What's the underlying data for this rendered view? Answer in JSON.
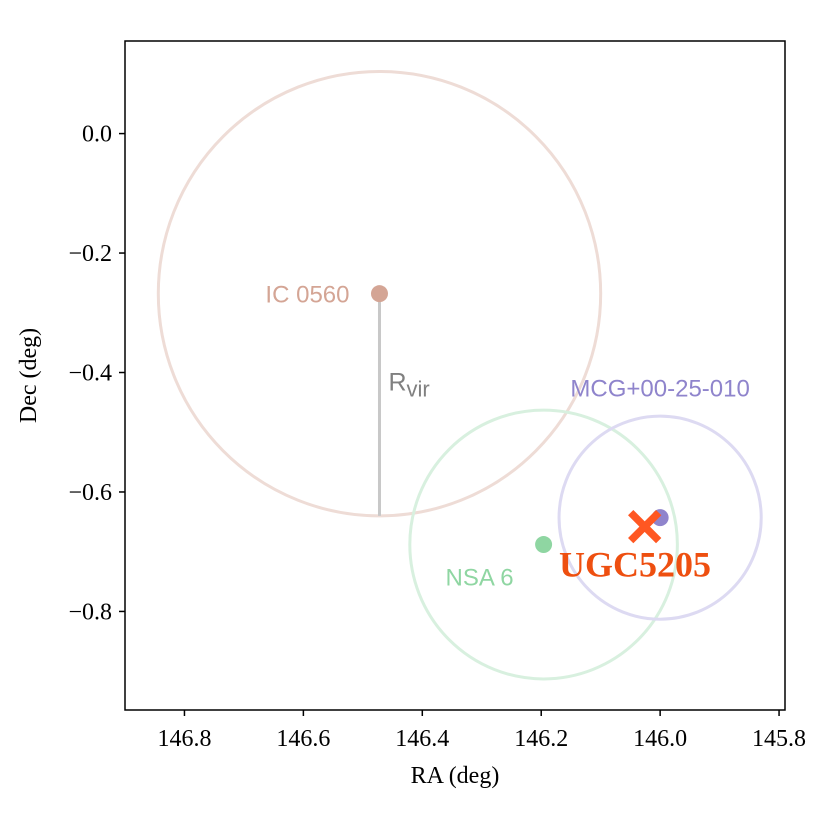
{
  "chart_data": {
    "type": "scatter",
    "xlabel": "RA (deg)",
    "ylabel": "Dec (deg)",
    "xlim": [
      146.9,
      145.79
    ],
    "ylim": [
      -0.965,
      0.155
    ],
    "x_ticks": [
      {
        "value": 146.8,
        "label": "146.8"
      },
      {
        "value": 146.6,
        "label": "146.6"
      },
      {
        "value": 146.4,
        "label": "146.4"
      },
      {
        "value": 146.2,
        "label": "146.2"
      },
      {
        "value": 146.0,
        "label": "146.0"
      },
      {
        "value": 145.8,
        "label": "145.8"
      }
    ],
    "y_ticks": [
      {
        "value": 0.0,
        "label": "0.0"
      },
      {
        "value": -0.2,
        "label": "−0.2"
      },
      {
        "value": -0.4,
        "label": "−0.4"
      },
      {
        "value": -0.6,
        "label": "−0.6"
      },
      {
        "value": -0.8,
        "label": "−0.8"
      }
    ],
    "galaxies": [
      {
        "name": "IC 0560",
        "ra": 146.472,
        "dec": -0.268,
        "rvir": 0.372,
        "color": "#D4A595",
        "circle_color": "#EEDCD6"
      },
      {
        "name": "NSA 6",
        "ra": 146.196,
        "dec": -0.688,
        "rvir": 0.225,
        "color": "#8FD6A2",
        "circle_color": "#D8F0DF"
      },
      {
        "name": "MCG+00-25-010",
        "ra": 146.0,
        "dec": -0.643,
        "rvir": 0.17,
        "color": "#8F84CC",
        "circle_color": "#DDDAF2"
      }
    ],
    "target": {
      "name": "UGC5205",
      "ra": 146.026,
      "dec": -0.658,
      "color": "#FF5722",
      "label_color": "#EE4F10"
    },
    "rvir_marker": {
      "label": "R",
      "subscript": "vir",
      "ra": 146.472,
      "dec_start": -0.268,
      "dec_end": -0.64,
      "color": "#C8C8C8"
    }
  }
}
